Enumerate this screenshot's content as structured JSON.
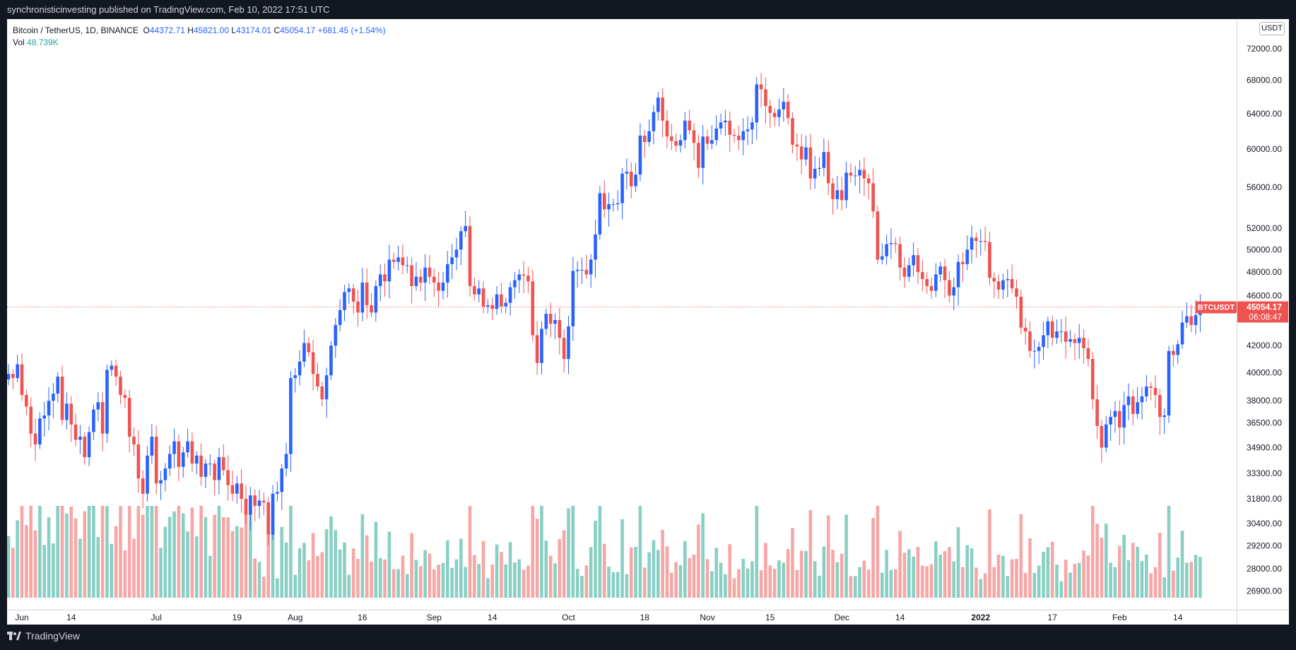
{
  "header": {
    "published_text": "synchronisticinvesting published on TradingView.com, Feb 10, 2022 17:51 UTC"
  },
  "footer": {
    "brand": "TradingView"
  },
  "legend": {
    "symbol": "Bitcoin / TetherUS, 1D, BINANCE",
    "o_label": "O",
    "o": "44372.71",
    "h_label": "H",
    "h": "45821.00",
    "l_label": "L",
    "l": "43174.01",
    "c_label": "C",
    "c": "45054.17",
    "change": "+681.45 (+1.54%)",
    "vol_label": "Vol",
    "vol": "48.739K"
  },
  "price_scale": {
    "currency": "USDT"
  },
  "price_tag": {
    "symbol": "BTCUSDT",
    "price": "45054.17",
    "countdown": "06:08:47"
  },
  "colors": {
    "up": "#2962ff",
    "down": "#ef5350",
    "vol_up": "#89cfc4",
    "vol_down": "#f7a6a6",
    "last_line": "#ef5350"
  },
  "chart_data": {
    "type": "candlestick",
    "title": "Bitcoin / TetherUS, 1D, BINANCE",
    "y_scale": "log",
    "ylim": [
      26000,
      76000
    ],
    "y_ticks": [
      "72000.00",
      "68000.00",
      "64000.00",
      "60000.00",
      "56000.00",
      "52000.00",
      "50000.00",
      "48000.00",
      "46000.00",
      "42000.00",
      "40000.00",
      "38000.00",
      "36500.00",
      "34900.00",
      "33300.00",
      "31800.00",
      "30400.00",
      "29200.00",
      "28000.00",
      "26900.00"
    ],
    "x_ticks": [
      {
        "label": "Jun",
        "day": 3
      },
      {
        "label": "14",
        "day": 14
      },
      {
        "label": "Jul",
        "day": 33
      },
      {
        "label": "19",
        "day": 51
      },
      {
        "label": "Aug",
        "day": 64
      },
      {
        "label": "16",
        "day": 79
      },
      {
        "label": "Sep",
        "day": 95
      },
      {
        "label": "14",
        "day": 108
      },
      {
        "label": "Oct",
        "day": 125
      },
      {
        "label": "18",
        "day": 142
      },
      {
        "label": "Nov",
        "day": 156
      },
      {
        "label": "15",
        "day": 170
      },
      {
        "label": "Dec",
        "day": 186
      },
      {
        "label": "14",
        "day": 199
      },
      {
        "label": "2022",
        "day": 217
      },
      {
        "label": "17",
        "day": 233
      },
      {
        "label": "Feb",
        "day": 248
      },
      {
        "label": "14",
        "day": 261
      }
    ],
    "last_price": 45054.17,
    "closes": [
      39900,
      39600,
      40600,
      38400,
      37600,
      35800,
      35100,
      36800,
      37000,
      38000,
      38500,
      39700,
      36700,
      37800,
      36400,
      35400,
      35600,
      34300,
      35900,
      37400,
      37900,
      35800,
      40200,
      40500,
      39700,
      38400,
      38200,
      35600,
      35100,
      33000,
      32100,
      34400,
      35600,
      32700,
      32900,
      33600,
      34500,
      35300,
      33700,
      34600,
      35300,
      33900,
      34400,
      33100,
      33900,
      33900,
      32900,
      34300,
      33500,
      32600,
      32100,
      32700,
      31800,
      30900,
      32000,
      31400,
      31700,
      31600,
      29800,
      32100,
      32200,
      33600,
      34500,
      39600,
      39800,
      40800,
      42200,
      41500,
      39900,
      39000,
      38100,
      39800,
      42000,
      43600,
      44800,
      46300,
      46600,
      45500,
      44600,
      47100,
      45200,
      44600,
      46800,
      47800,
      47200,
      49100,
      48900,
      49300,
      48600,
      48600,
      46800,
      47600,
      47100,
      48400,
      47600,
      47100,
      46400,
      47100,
      48700,
      49300,
      50000,
      51700,
      52200,
      46800,
      46100,
      46600,
      45100,
      45200,
      44900,
      46100,
      45100,
      45400,
      46700,
      47300,
      47800,
      47700,
      47200,
      42800,
      40700,
      43300,
      44500,
      43700,
      44000,
      42600,
      41000,
      43500,
      48100,
      48200,
      48200,
      47800,
      49100,
      51400,
      55400,
      53800,
      54300,
      54300,
      54400,
      57400,
      57600,
      56100,
      57300,
      61500,
      60800,
      62000,
      64200,
      65900,
      63200,
      61400,
      60900,
      60400,
      61000,
      63200,
      62100,
      60700,
      58000,
      61400,
      60600,
      61000,
      62300,
      63000,
      63200,
      61600,
      61500,
      61000,
      62000,
      62200,
      63000,
      67500,
      66900,
      64900,
      64100,
      63600,
      64500,
      65400,
      63500,
      60500,
      60300,
      58900,
      60200,
      56900,
      57900,
      58000,
      59700,
      56400,
      54800,
      55700,
      54700,
      57500,
      57200,
      57200,
      57800,
      56900,
      56400,
      53600,
      49100,
      49400,
      50500,
      50600,
      50500,
      48400,
      47600,
      48600,
      49500,
      48000,
      47400,
      46800,
      46400,
      47800,
      48500,
      47300,
      46000,
      46700,
      48900,
      48700,
      50000,
      51100,
      50800,
      50800,
      50700,
      47500,
      47200,
      46500,
      47300,
      47400,
      46600,
      45900,
      43400,
      43100,
      41600,
      41600,
      41900,
      42800,
      43900,
      42600,
      43100,
      43100,
      42300,
      42500,
      42200,
      42600,
      41800,
      41000,
      38100,
      36300,
      34900,
      36400,
      36900,
      37300,
      36200,
      37700,
      38300,
      37100,
      37900,
      38300,
      39000,
      38900,
      38400,
      36900,
      37000,
      41600,
      41300,
      42100,
      43800,
      44300,
      43600,
      44400,
      45100
    ],
    "volume_max": 80000
  }
}
